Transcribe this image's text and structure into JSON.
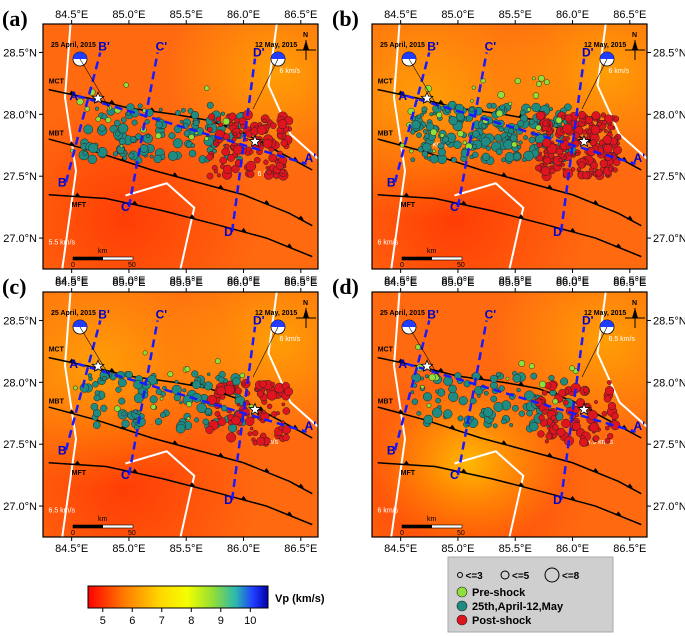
{
  "panels": [
    {
      "id": "a",
      "label": "(a)",
      "contour_labels": [
        "6 km/s",
        "5.5 km/s",
        "6 km/s"
      ],
      "density": 1.0
    },
    {
      "id": "b",
      "label": "(b)",
      "contour_labels": [
        "6 km/s",
        "6 km/s",
        "6 km/s",
        "6 km/s"
      ],
      "density": 1.6
    },
    {
      "id": "c",
      "label": "(c)",
      "contour_labels": [
        "6 km/s",
        "6.5 km/s",
        "6 km/s"
      ],
      "density": 0.8
    },
    {
      "id": "d",
      "label": "(d)",
      "contour_labels": [
        "6.5 km/s",
        "6 km/s",
        "6.5 km/s"
      ],
      "density": 0.7
    }
  ],
  "axes": {
    "lon_ticks": [
      "84.5°E",
      "85.0°E",
      "85.5°E",
      "86.0°E",
      "86.5°E"
    ],
    "lat_ticks": [
      "28.5°N",
      "28.0°N",
      "27.5°N",
      "27.0°N"
    ]
  },
  "map_labels": {
    "thrusts": [
      "MCT",
      "MBT",
      "MFT"
    ],
    "mainshock_date": "25 April, 2015",
    "aftershock_date": "12 May, 2015",
    "north": "N",
    "scale_unit": "km",
    "scale_ticks": [
      "0",
      "50"
    ],
    "sections": [
      "A",
      "A'",
      "B",
      "B'",
      "C",
      "C'",
      "D",
      "D'"
    ]
  },
  "colorbar": {
    "label": "Vp (km/s)",
    "ticks": [
      "5",
      "6",
      "7",
      "8",
      "9",
      "10"
    ],
    "colors": [
      "#ff0000",
      "#ff7a00",
      "#ffd600",
      "#f4ff00",
      "#8fdc3a",
      "#2ab8b0",
      "#1f3cff",
      "#0000a8"
    ]
  },
  "legend": {
    "size_items": [
      "<=3",
      "<=5",
      "<=8"
    ],
    "items": [
      {
        "label": "Pre-shock",
        "color": "#8fe03a"
      },
      {
        "label": "25th,April-12,May",
        "color": "#1f8c84"
      },
      {
        "label": "Post-shock",
        "color": "#e0141e"
      }
    ]
  }
}
